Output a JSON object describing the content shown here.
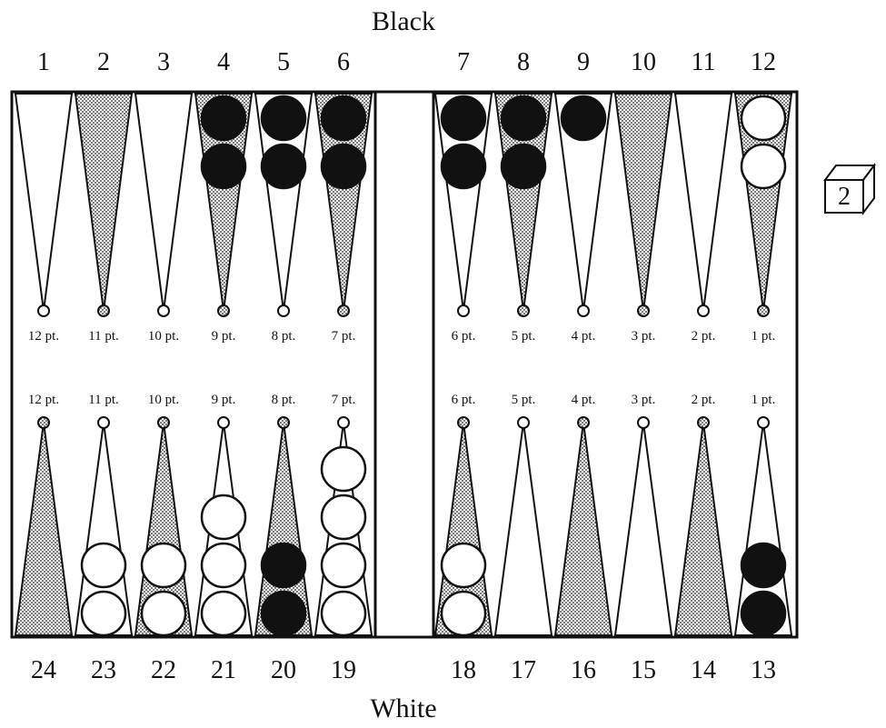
{
  "labels": {
    "top_player": "Black",
    "bottom_player": "White"
  },
  "cube": {
    "value": "2"
  },
  "colors": {
    "ink": "#111111",
    "paper": "#ffffff",
    "stipple": "#bdbdbd"
  },
  "points": [
    {
      "n": "1",
      "pip": "12 pt.",
      "fill": "white",
      "dot": "white",
      "checkers": []
    },
    {
      "n": "2",
      "pip": "11 pt.",
      "fill": "dotted",
      "dot": "dotted",
      "checkers": []
    },
    {
      "n": "3",
      "pip": "10 pt.",
      "fill": "white",
      "dot": "white",
      "checkers": []
    },
    {
      "n": "4",
      "pip": "9 pt.",
      "fill": "dotted",
      "dot": "dotted",
      "checkers": [
        "black",
        "black"
      ]
    },
    {
      "n": "5",
      "pip": "8 pt.",
      "fill": "white",
      "dot": "white",
      "checkers": [
        "black",
        "black"
      ]
    },
    {
      "n": "6",
      "pip": "7 pt.",
      "fill": "dotted",
      "dot": "dotted",
      "checkers": [
        "black",
        "black"
      ]
    },
    {
      "n": "7",
      "pip": "6 pt.",
      "fill": "white",
      "dot": "white",
      "checkers": [
        "black",
        "black"
      ]
    },
    {
      "n": "8",
      "pip": "5 pt.",
      "fill": "dotted",
      "dot": "dotted",
      "checkers": [
        "black",
        "black"
      ]
    },
    {
      "n": "9",
      "pip": "4 pt.",
      "fill": "white",
      "dot": "white",
      "checkers": [
        "black"
      ]
    },
    {
      "n": "10",
      "pip": "3 pt.",
      "fill": "dotted",
      "dot": "dotted",
      "checkers": []
    },
    {
      "n": "11",
      "pip": "2 pt.",
      "fill": "white",
      "dot": "white",
      "checkers": []
    },
    {
      "n": "12",
      "pip": "1 pt.",
      "fill": "dotted",
      "dot": "dotted",
      "checkers": [
        "white",
        "white"
      ]
    },
    {
      "n": "13",
      "pip": "1 pt.",
      "fill": "white",
      "dot": "white",
      "checkers": [
        "black",
        "black"
      ]
    },
    {
      "n": "14",
      "pip": "2 pt.",
      "fill": "dotted",
      "dot": "dotted",
      "checkers": []
    },
    {
      "n": "15",
      "pip": "3 pt.",
      "fill": "white",
      "dot": "white",
      "checkers": []
    },
    {
      "n": "16",
      "pip": "4 pt.",
      "fill": "dotted",
      "dot": "dotted",
      "checkers": []
    },
    {
      "n": "17",
      "pip": "5 pt.",
      "fill": "white",
      "dot": "white",
      "checkers": []
    },
    {
      "n": "18",
      "pip": "6 pt.",
      "fill": "dotted",
      "dot": "dotted",
      "checkers": [
        "white",
        "white"
      ]
    },
    {
      "n": "19",
      "pip": "7 pt.",
      "fill": "white",
      "dot": "white",
      "checkers": [
        "white",
        "white",
        "white",
        "white"
      ]
    },
    {
      "n": "20",
      "pip": "8 pt.",
      "fill": "dotted",
      "dot": "dotted",
      "checkers": [
        "black",
        "black"
      ]
    },
    {
      "n": "21",
      "pip": "9 pt.",
      "fill": "white",
      "dot": "white",
      "checkers": [
        "white",
        "white",
        "white"
      ]
    },
    {
      "n": "22",
      "pip": "10 pt.",
      "fill": "dotted",
      "dot": "dotted",
      "checkers": [
        "white",
        "white"
      ]
    },
    {
      "n": "23",
      "pip": "11 pt.",
      "fill": "white",
      "dot": "white",
      "checkers": [
        "white",
        "white"
      ]
    },
    {
      "n": "24",
      "pip": "12 pt.",
      "fill": "dotted",
      "dot": "dotted",
      "checkers": []
    }
  ]
}
